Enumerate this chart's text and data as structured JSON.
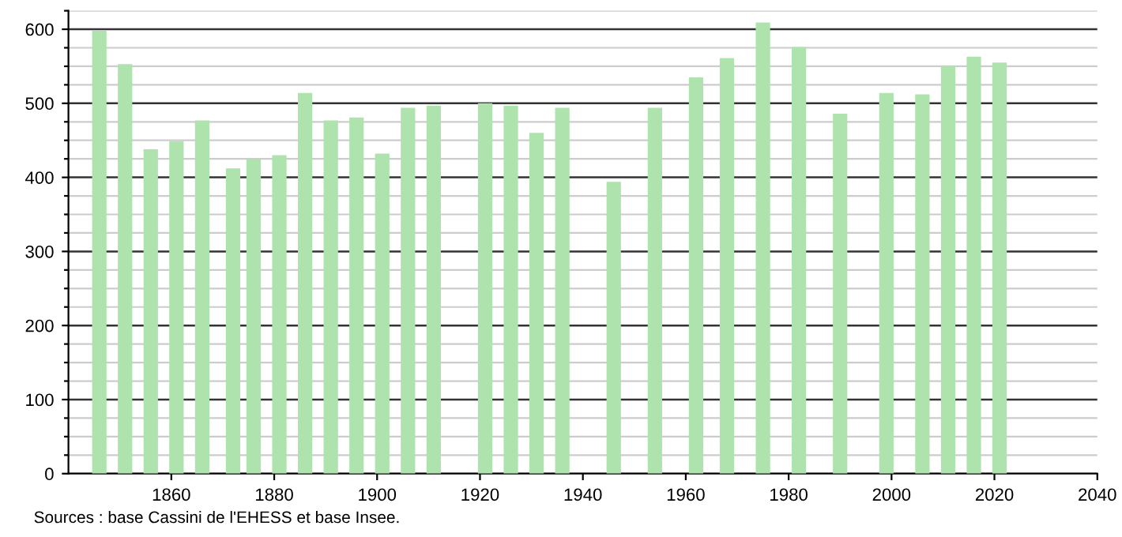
{
  "chart_data": {
    "type": "bar",
    "x": [
      1846,
      1851,
      1856,
      1861,
      1866,
      1872,
      1876,
      1881,
      1886,
      1891,
      1896,
      1901,
      1906,
      1911,
      1921,
      1926,
      1931,
      1936,
      1946,
      1954,
      1962,
      1968,
      1975,
      1982,
      1990,
      1999,
      2006,
      2011,
      2016,
      2021
    ],
    "values": [
      598,
      553,
      438,
      449,
      477,
      412,
      424,
      430,
      514,
      477,
      481,
      432,
      494,
      497,
      500,
      497,
      460,
      494,
      394,
      494,
      535,
      561,
      609,
      576,
      486,
      514,
      512,
      550,
      563,
      555
    ],
    "color": "#aee3ae",
    "xlim": [
      1840,
      2040
    ],
    "xticks": [
      1860,
      1880,
      1900,
      1920,
      1940,
      1960,
      1980,
      2000,
      2020,
      2040
    ],
    "ylim": [
      0,
      625
    ],
    "yticks": [
      0,
      {
        "value": 25,
        "label": null
      },
      {
        "value": 50,
        "label": null
      },
      {
        "value": 75,
        "label": null
      },
      100,
      {
        "value": 125,
        "label": null
      },
      {
        "value": 150,
        "label": null
      },
      {
        "value": 175,
        "label": null
      },
      200,
      {
        "value": 225,
        "label": null
      },
      {
        "value": 250,
        "label": null
      },
      {
        "value": 275,
        "label": null
      },
      300,
      {
        "value": 325,
        "label": null
      },
      {
        "value": 350,
        "label": null
      },
      {
        "value": 375,
        "label": null
      },
      400,
      {
        "value": 425,
        "label": null
      },
      {
        "value": 450,
        "label": null
      },
      {
        "value": 475,
        "label": null
      },
      500,
      {
        "value": 525,
        "label": null
      },
      {
        "value": 550,
        "label": null
      },
      {
        "value": 575,
        "label": null
      },
      600,
      {
        "value": 625,
        "label": null
      }
    ],
    "grid": "y",
    "annotations": [
      "Sources : base Cassini de l'EHESS et base Insee."
    ]
  }
}
